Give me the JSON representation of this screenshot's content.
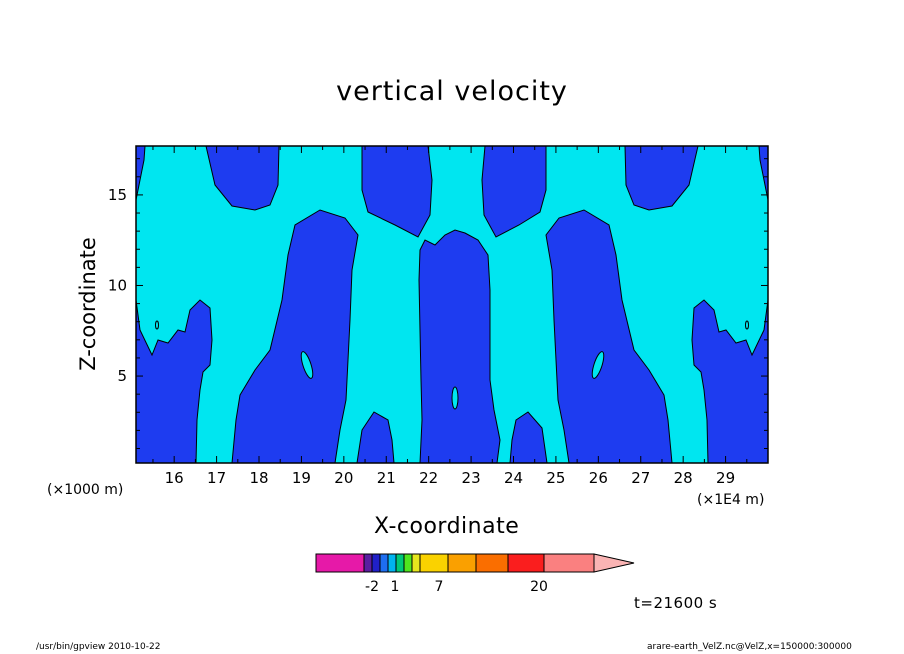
{
  "chart_data": {
    "type": "contour",
    "title": "vertical velocity",
    "xlabel": "X-coordinate",
    "ylabel": "Z-coordinate",
    "x_unit_left": "(×1000 m)",
    "x_unit_right": "(×1E4 m)",
    "xlim": [
      15.1,
      30.0
    ],
    "ylim": [
      0.2,
      17.7
    ],
    "x_ticks": [
      "16",
      "17",
      "18",
      "19",
      "20",
      "21",
      "22",
      "23",
      "24",
      "25",
      "26",
      "27",
      "28",
      "29"
    ],
    "y_ticks": [
      "5",
      "10",
      "15"
    ],
    "fill_levels": [
      {
        "range": "< -2",
        "color": "#1e3cf0"
      },
      {
        "range": "-2 to 1",
        "color": "#00e6f0"
      }
    ],
    "colorbar": {
      "colors": [
        "#e619a8",
        "#5a1ea0",
        "#2020c8",
        "#1e6ef0",
        "#00b4f0",
        "#00c878",
        "#50e61e",
        "#e6e61e",
        "#fad200",
        "#faa000",
        "#fa6e00",
        "#fa1e1e",
        "#fa8080",
        "#fab4b4"
      ],
      "labels": [
        "-2",
        "1",
        "7",
        "20"
      ]
    },
    "time_label": "t=21600 s"
  },
  "footer": {
    "left": "/usr/bin/gpview   2010-10-22",
    "right": "arare-earth_VelZ.nc@VelZ,x=150000:300000"
  }
}
